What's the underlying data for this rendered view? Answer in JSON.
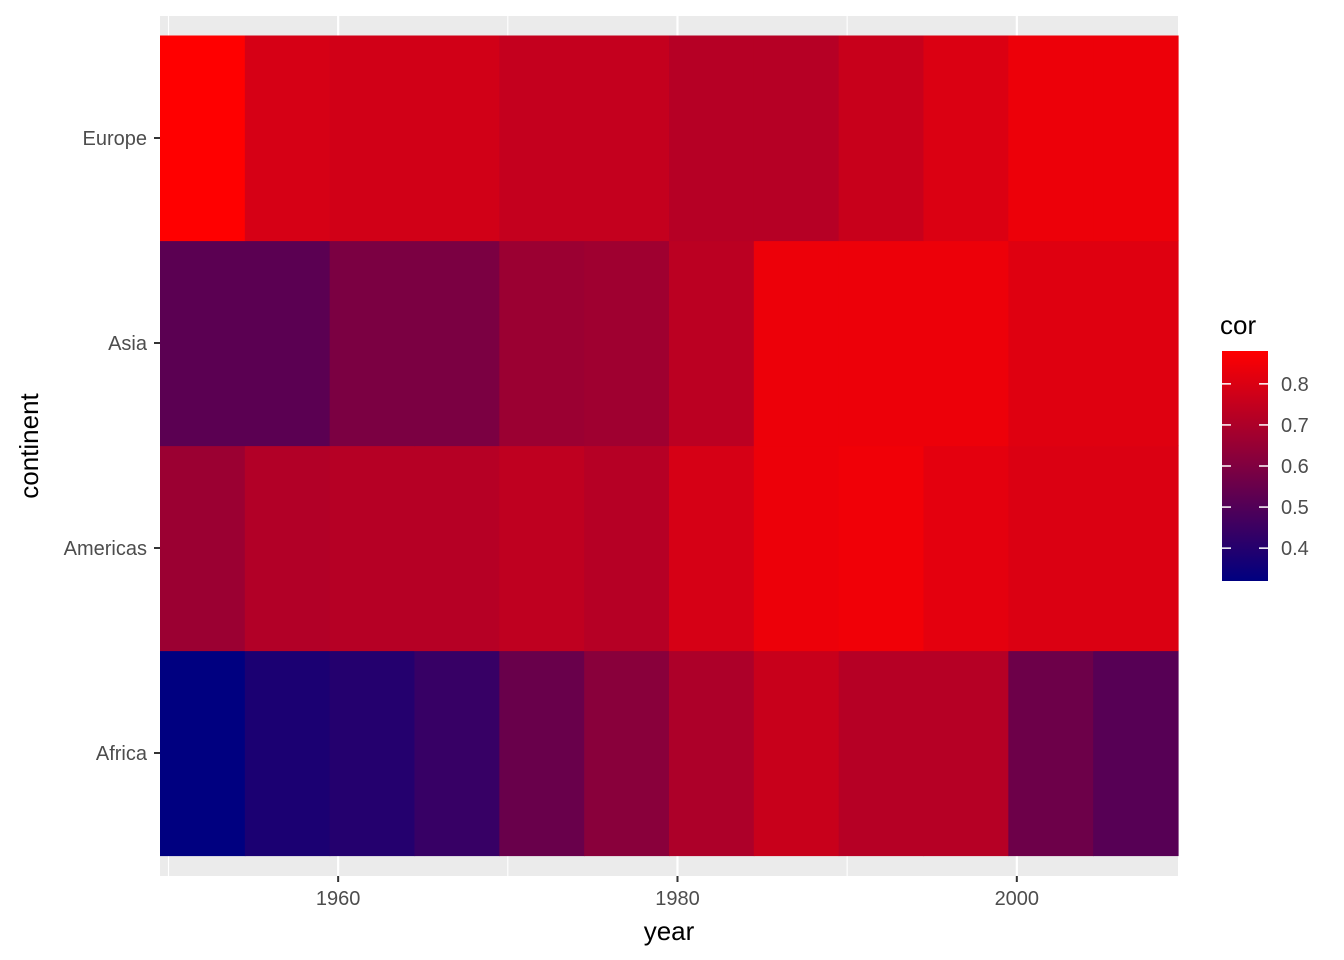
{
  "chart_data": {
    "type": "heatmap",
    "xlabel": "year",
    "ylabel": "continent",
    "x": [
      1952,
      1957,
      1962,
      1967,
      1972,
      1977,
      1982,
      1987,
      1992,
      1997,
      2002,
      2007
    ],
    "x_ticks": [
      "1960",
      "1980",
      "2000"
    ],
    "x_tick_values": [
      1960,
      1980,
      2000
    ],
    "xlim": [
      1949.5,
      2009.5
    ],
    "categories": [
      "Africa",
      "Americas",
      "Asia",
      "Europe"
    ],
    "series": [
      {
        "name": "Africa",
        "values": [
          0.32,
          0.38,
          0.4,
          0.44,
          0.55,
          0.62,
          0.7,
          0.76,
          0.72,
          0.72,
          0.56,
          0.51
        ]
      },
      {
        "name": "Americas",
        "values": [
          0.66,
          0.71,
          0.72,
          0.72,
          0.74,
          0.72,
          0.79,
          0.84,
          0.85,
          0.82,
          0.8,
          0.8
        ]
      },
      {
        "name": "Asia",
        "values": [
          0.52,
          0.52,
          0.59,
          0.59,
          0.66,
          0.67,
          0.73,
          0.84,
          0.84,
          0.84,
          0.81,
          0.81
        ]
      },
      {
        "name": "Europe",
        "values": [
          0.88,
          0.79,
          0.78,
          0.78,
          0.75,
          0.75,
          0.72,
          0.72,
          0.76,
          0.8,
          0.84,
          0.84
        ]
      }
    ],
    "legend": {
      "title": "cor",
      "labels": [
        "0.8",
        "0.7",
        "0.6",
        "0.5",
        "0.4"
      ],
      "breaks": [
        0.8,
        0.7,
        0.6,
        0.5,
        0.4
      ],
      "limits": [
        0.32,
        0.88
      ],
      "low_color": "#000080",
      "high_color": "#FF0000",
      "placement": "right"
    },
    "grid": true,
    "panel_background": "#EBEBEB",
    "grid_color": "#FFFFFF"
  }
}
